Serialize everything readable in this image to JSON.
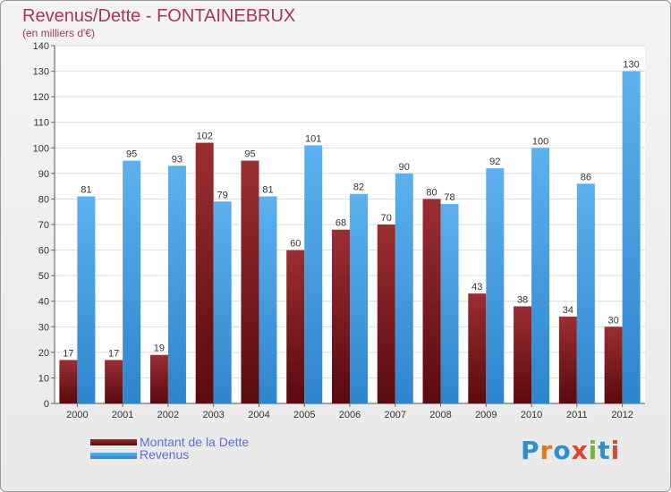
{
  "header": {
    "title": "Revenus/Dette - FONTAINEBRUX",
    "subtitle": "(en milliers d'€)"
  },
  "chart_data": {
    "type": "bar",
    "categories": [
      "2000",
      "2001",
      "2002",
      "2003",
      "2004",
      "2005",
      "2006",
      "2007",
      "2008",
      "2009",
      "2010",
      "2011",
      "2012"
    ],
    "series": [
      {
        "name": "Montant de la Dette",
        "values": [
          17,
          17,
          19,
          102,
          95,
          60,
          68,
          70,
          80,
          43,
          38,
          34,
          30
        ],
        "color": "#7a1a1e"
      },
      {
        "name": "Revenus",
        "values": [
          81,
          95,
          93,
          79,
          81,
          101,
          82,
          90,
          78,
          92,
          100,
          86,
          130
        ],
        "color": "#4aa3e6"
      }
    ],
    "ylim": [
      0,
      140
    ],
    "yticks": [
      0,
      10,
      20,
      30,
      40,
      50,
      60,
      70,
      80,
      90,
      100,
      110,
      120,
      130,
      140
    ],
    "grid": true,
    "data_labels": true,
    "legend": "bottom-left"
  },
  "logo": {
    "text": "Proxiti",
    "letters": [
      "P",
      "r",
      "o",
      "x",
      "i",
      "t",
      "i"
    ],
    "colors": [
      "#2e8fd0",
      "#e07b1a",
      "#2e8fd0",
      "#d64a2a",
      "#7ab43a",
      "#2e8fd0",
      "#d64a2a"
    ]
  }
}
